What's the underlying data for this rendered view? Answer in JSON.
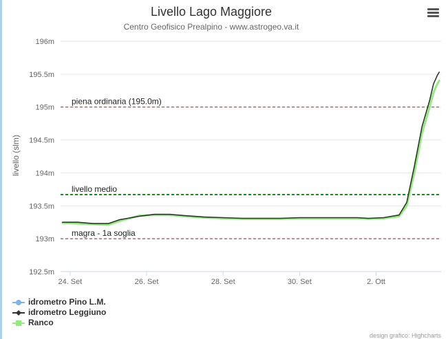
{
  "chart_data": {
    "type": "line",
    "title": "Livello Lago Maggiore",
    "subtitle": "Centro Geofisico Prealpino - www.astrogeo.va.it",
    "ylabel": "livello (slm)",
    "ylim": [
      192.5,
      196
    ],
    "y_ticks": [
      "192.5m",
      "193m",
      "193.5m",
      "194m",
      "194.5m",
      "195m",
      "195.5m",
      "196m"
    ],
    "y_tick_values": [
      192.5,
      193.0,
      193.5,
      194.0,
      194.5,
      195.0,
      195.5,
      196.0
    ],
    "x_ticks": [
      "24. Set",
      "26. Set",
      "28. Set",
      "30. Set",
      "2. Ott"
    ],
    "x_tick_days": [
      24,
      26,
      28,
      30,
      32
    ],
    "xlim_days": [
      23.75,
      33.7
    ],
    "plot_bands": [
      {
        "label": "piena ordinaria (195.0m)",
        "value": 195.0,
        "color": "#b22222"
      },
      {
        "label": "livello medio",
        "value": 193.67,
        "color": "#1a8a1a"
      },
      {
        "label": "magra - 1a soglia",
        "value": 193.0,
        "color": "#8b1a5a"
      }
    ],
    "series": [
      {
        "name": "idrometro Pino L.M.",
        "color": "#7cb5ec",
        "marker": "circle",
        "x": [],
        "y": []
      },
      {
        "name": "idrometro Leggiuno",
        "color": "#333333",
        "marker": "diamond",
        "x": [
          23.8,
          24.2,
          24.6,
          25.0,
          25.3,
          25.5,
          25.8,
          26.2,
          26.6,
          27.0,
          27.5,
          28.0,
          28.5,
          29.0,
          29.5,
          30.0,
          30.5,
          31.0,
          31.5,
          31.8,
          32.2,
          32.6,
          32.8,
          33.0,
          33.2,
          33.4,
          33.5,
          33.6,
          33.65
        ],
        "y": [
          193.25,
          193.25,
          193.23,
          193.23,
          193.29,
          193.31,
          193.34,
          193.37,
          193.37,
          193.35,
          193.33,
          193.32,
          193.31,
          193.31,
          193.31,
          193.32,
          193.32,
          193.32,
          193.32,
          193.31,
          193.32,
          193.36,
          193.55,
          194.1,
          194.7,
          195.1,
          195.35,
          195.48,
          195.53
        ]
      },
      {
        "name": "Ranco",
        "color": "#90ed7d",
        "marker": "square",
        "x": [
          23.8,
          24.2,
          24.6,
          25.0,
          25.3,
          25.5,
          25.8,
          26.2,
          26.6,
          27.0,
          27.5,
          28.0,
          28.5,
          29.0,
          29.5,
          30.0,
          30.5,
          31.0,
          31.5,
          31.8,
          32.2,
          32.6,
          32.8,
          33.0,
          33.2,
          33.4,
          33.5,
          33.6,
          33.65
        ],
        "y": [
          193.24,
          193.23,
          193.22,
          193.21,
          193.27,
          193.3,
          193.35,
          193.36,
          193.36,
          193.34,
          193.32,
          193.31,
          193.3,
          193.3,
          193.3,
          193.31,
          193.31,
          193.31,
          193.31,
          193.3,
          193.31,
          193.34,
          193.5,
          194.0,
          194.6,
          195.0,
          195.22,
          195.35,
          195.4
        ]
      }
    ],
    "legend_position": "bottom-left",
    "credits": "design grafico: Highcharts"
  },
  "ui": {
    "menu_icon": "hamburger-menu-icon"
  }
}
